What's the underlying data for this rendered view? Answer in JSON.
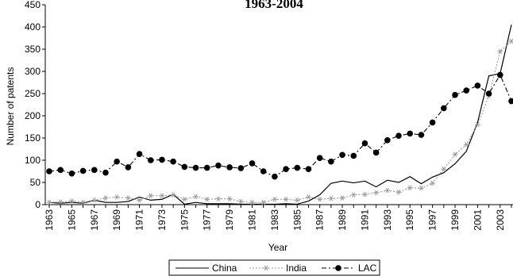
{
  "chart_data": {
    "type": "line",
    "title": "1963-2004",
    "xlabel": "Year",
    "ylabel": "Number of patents",
    "categories": [
      "1963",
      null,
      "1965",
      null,
      "1967",
      null,
      "1969",
      null,
      "1971",
      null,
      "1973",
      null,
      "1975",
      null,
      "1977",
      null,
      "1979",
      null,
      "1981",
      null,
      "1983",
      null,
      "1985",
      null,
      "1987",
      null,
      "1989",
      null,
      "1991",
      null,
      "1993",
      null,
      "1995",
      null,
      "1997",
      null,
      "1999",
      null,
      "2001",
      null,
      "2003",
      null
    ],
    "series": [
      {
        "name": "China",
        "color": "#000000",
        "style": "solid",
        "marker": "none",
        "values": [
          5,
          3,
          5,
          3,
          10,
          5,
          5,
          7,
          17,
          10,
          12,
          23,
          1,
          5,
          2,
          2,
          2,
          1,
          1,
          1,
          1,
          2,
          1,
          8,
          22,
          48,
          53,
          49,
          53,
          40,
          55,
          50,
          63,
          47,
          62,
          72,
          92,
          120,
          185,
          290,
          295,
          405
        ]
      },
      {
        "name": "India",
        "color": "#999999",
        "style": "dotted",
        "marker": "star",
        "values": [
          5,
          6,
          8,
          5,
          10,
          15,
          17,
          15,
          10,
          20,
          20,
          22,
          12,
          18,
          12,
          13,
          13,
          7,
          5,
          5,
          12,
          12,
          10,
          17,
          12,
          14,
          15,
          22,
          23,
          27,
          32,
          28,
          38,
          37,
          48,
          80,
          113,
          135,
          180,
          245,
          345,
          368
        ]
      },
      {
        "name": "LAC",
        "color": "#000000",
        "style": "dashdot",
        "marker": "circle",
        "values": [
          75,
          78,
          70,
          76,
          78,
          72,
          97,
          84,
          114,
          100,
          101,
          97,
          85,
          83,
          83,
          88,
          84,
          82,
          93,
          75,
          63,
          80,
          83,
          80,
          105,
          97,
          112,
          110,
          138,
          117,
          145,
          155,
          160,
          157,
          185,
          217,
          247,
          257,
          268,
          250,
          292,
          233
        ]
      }
    ],
    "ylim": [
      0,
      450
    ],
    "yticks": [
      0,
      50,
      100,
      150,
      200,
      250,
      300,
      350,
      400,
      450
    ],
    "grid": false,
    "legend": "bottom"
  }
}
